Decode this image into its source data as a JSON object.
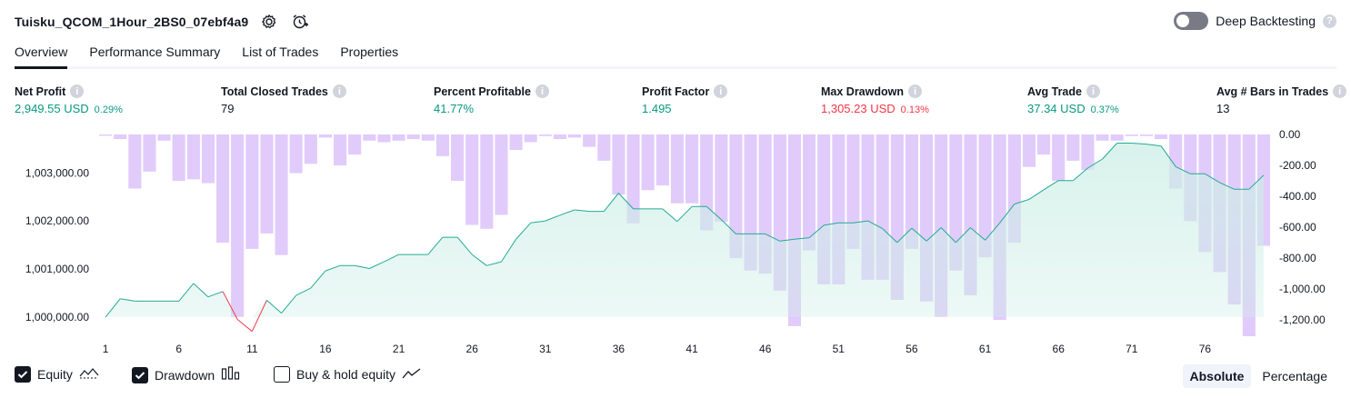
{
  "header": {
    "strategy_name": "Tuisku_QCOM_1Hour_2BS0_07ebf4a9",
    "deep_backtesting_label": "Deep Backtesting",
    "deep_backtesting_on": false,
    "icons": [
      "settings-icon",
      "alert-add-icon",
      "help-icon"
    ]
  },
  "tabs": [
    {
      "label": "Overview",
      "active": true
    },
    {
      "label": "Performance Summary",
      "active": false
    },
    {
      "label": "List of Trades",
      "active": false
    },
    {
      "label": "Properties",
      "active": false
    }
  ],
  "metrics": [
    {
      "label": "Net Profit",
      "value": "2,949.55 USD",
      "pct": "0.29%",
      "tone": "pos"
    },
    {
      "label": "Total Closed Trades",
      "value": "79",
      "pct": "",
      "tone": "plain"
    },
    {
      "label": "Percent Profitable",
      "value": "41.77%",
      "pct": "",
      "tone": "pos"
    },
    {
      "label": "Profit Factor",
      "value": "1.495",
      "pct": "",
      "tone": "pos"
    },
    {
      "label": "Max Drawdown",
      "value": "1,305.23 USD",
      "pct": "0.13%",
      "tone": "neg"
    },
    {
      "label": "Avg Trade",
      "value": "37.34 USD",
      "pct": "0.37%",
      "tone": "pos"
    },
    {
      "label": "Avg # Bars in Trades",
      "value": "13",
      "pct": "",
      "tone": "plain"
    }
  ],
  "legend": {
    "equity_label": "Equity",
    "equity_checked": true,
    "drawdown_label": "Drawdown",
    "drawdown_checked": true,
    "buyhold_label": "Buy & hold equity",
    "buyhold_checked": false
  },
  "view_toggle": {
    "absolute_label": "Absolute",
    "percentage_label": "Percentage",
    "selected": "Absolute"
  },
  "colors": {
    "equity_line": "#22ab94",
    "equity_fill": "#cdeee6",
    "equity_negative": "#f23645",
    "drawdown_bar": "#dec5fb",
    "text": "#131722",
    "positive": "#089981",
    "negative": "#f23645"
  },
  "chart_data": {
    "type": "area",
    "x_ticks": [
      "1",
      "6",
      "11",
      "16",
      "21",
      "26",
      "31",
      "36",
      "41",
      "46",
      "51",
      "56",
      "61",
      "66",
      "71",
      "76"
    ],
    "y_left_ticks": [
      "1,000,000.00",
      "1,001,000.00",
      "1,002,000.00",
      "1,003,000.00"
    ],
    "y_left_range": [
      999600,
      1003800
    ],
    "y_right_ticks": [
      "0.00",
      "-200.00",
      "-400.00",
      "-600.00",
      "-800.00",
      "-1,000.00",
      "-1,200.00"
    ],
    "y_right_range": [
      -1305,
      0
    ],
    "series": [
      {
        "type": "line-area",
        "x": [
          1,
          2,
          3,
          4,
          5,
          6,
          7,
          8,
          9,
          10,
          11,
          12,
          13,
          14,
          15,
          16,
          17,
          18,
          19,
          20,
          21,
          22,
          23,
          24,
          25,
          26,
          27,
          28,
          29,
          30,
          31,
          32,
          33,
          34,
          35,
          36,
          37,
          38,
          39,
          40,
          41,
          42,
          43,
          44,
          45,
          46,
          47,
          48,
          49,
          50,
          51,
          52,
          53,
          54,
          55,
          56,
          57,
          58,
          59,
          60,
          61,
          62,
          63,
          64,
          65,
          66,
          67,
          68,
          69,
          70,
          71,
          72,
          73,
          74,
          75,
          76,
          77,
          78,
          79,
          80
        ],
        "values": [
          1000000,
          1000380,
          1000330,
          1000330,
          1000330,
          1000330,
          1000700,
          1000420,
          1000530,
          999950,
          999700,
          1000350,
          1000080,
          1000450,
          1000600,
          1000960,
          1001070,
          1001070,
          1001010,
          1001150,
          1001300,
          1001300,
          1001300,
          1001660,
          1001660,
          1001300,
          1001070,
          1001150,
          1001620,
          1001960,
          1002000,
          1002120,
          1002230,
          1002200,
          1002200,
          1002580,
          1002250,
          1002250,
          1002250,
          1001990,
          1002300,
          1002300,
          1002030,
          1001730,
          1001730,
          1001730,
          1001580,
          1001620,
          1001650,
          1001910,
          1001960,
          1001960,
          1002000,
          1001840,
          1001550,
          1001850,
          1001580,
          1001860,
          1001550,
          1001860,
          1001600,
          1001960,
          1002350,
          1002450,
          1002650,
          1002840,
          1002840,
          1003100,
          1003290,
          1003620,
          1003620,
          1003600,
          1003560,
          1003130,
          1002980,
          1002980,
          1002800,
          1002660,
          1002660,
          1002950
        ]
      },
      {
        "type": "bar",
        "x": [
          1,
          2,
          3,
          4,
          5,
          6,
          7,
          8,
          9,
          10,
          11,
          12,
          13,
          14,
          15,
          16,
          17,
          18,
          19,
          20,
          21,
          22,
          23,
          24,
          25,
          26,
          27,
          28,
          29,
          30,
          31,
          32,
          33,
          34,
          35,
          36,
          37,
          38,
          39,
          40,
          41,
          42,
          43,
          44,
          45,
          46,
          47,
          48,
          49,
          50,
          51,
          52,
          53,
          54,
          55,
          56,
          57,
          58,
          59,
          60,
          61,
          62,
          63,
          64,
          65,
          66,
          67,
          68,
          69,
          70,
          71,
          72,
          73,
          74,
          75,
          76,
          77,
          78,
          79,
          80
        ],
        "values": [
          -8,
          -30,
          -350,
          -240,
          -40,
          -300,
          -290,
          -315,
          -700,
          -1180,
          -740,
          -640,
          -780,
          -250,
          -190,
          -20,
          -200,
          -130,
          -40,
          -50,
          -40,
          -30,
          -40,
          -140,
          -300,
          -585,
          -610,
          -520,
          -100,
          -50,
          -10,
          -30,
          -20,
          -80,
          -170,
          -390,
          -575,
          -360,
          -330,
          -445,
          -445,
          -620,
          -565,
          -800,
          -880,
          -900,
          -1010,
          -1240,
          -750,
          -970,
          -970,
          -740,
          -940,
          -940,
          -1070,
          -740,
          -1080,
          -1180,
          -880,
          -1040,
          -795,
          -1200,
          -700,
          -210,
          -130,
          -300,
          -170,
          -230,
          -40,
          -40,
          -10,
          -10,
          -30,
          -350,
          -560,
          -760,
          -890,
          -1100,
          -1305,
          -720
        ]
      }
    ]
  }
}
